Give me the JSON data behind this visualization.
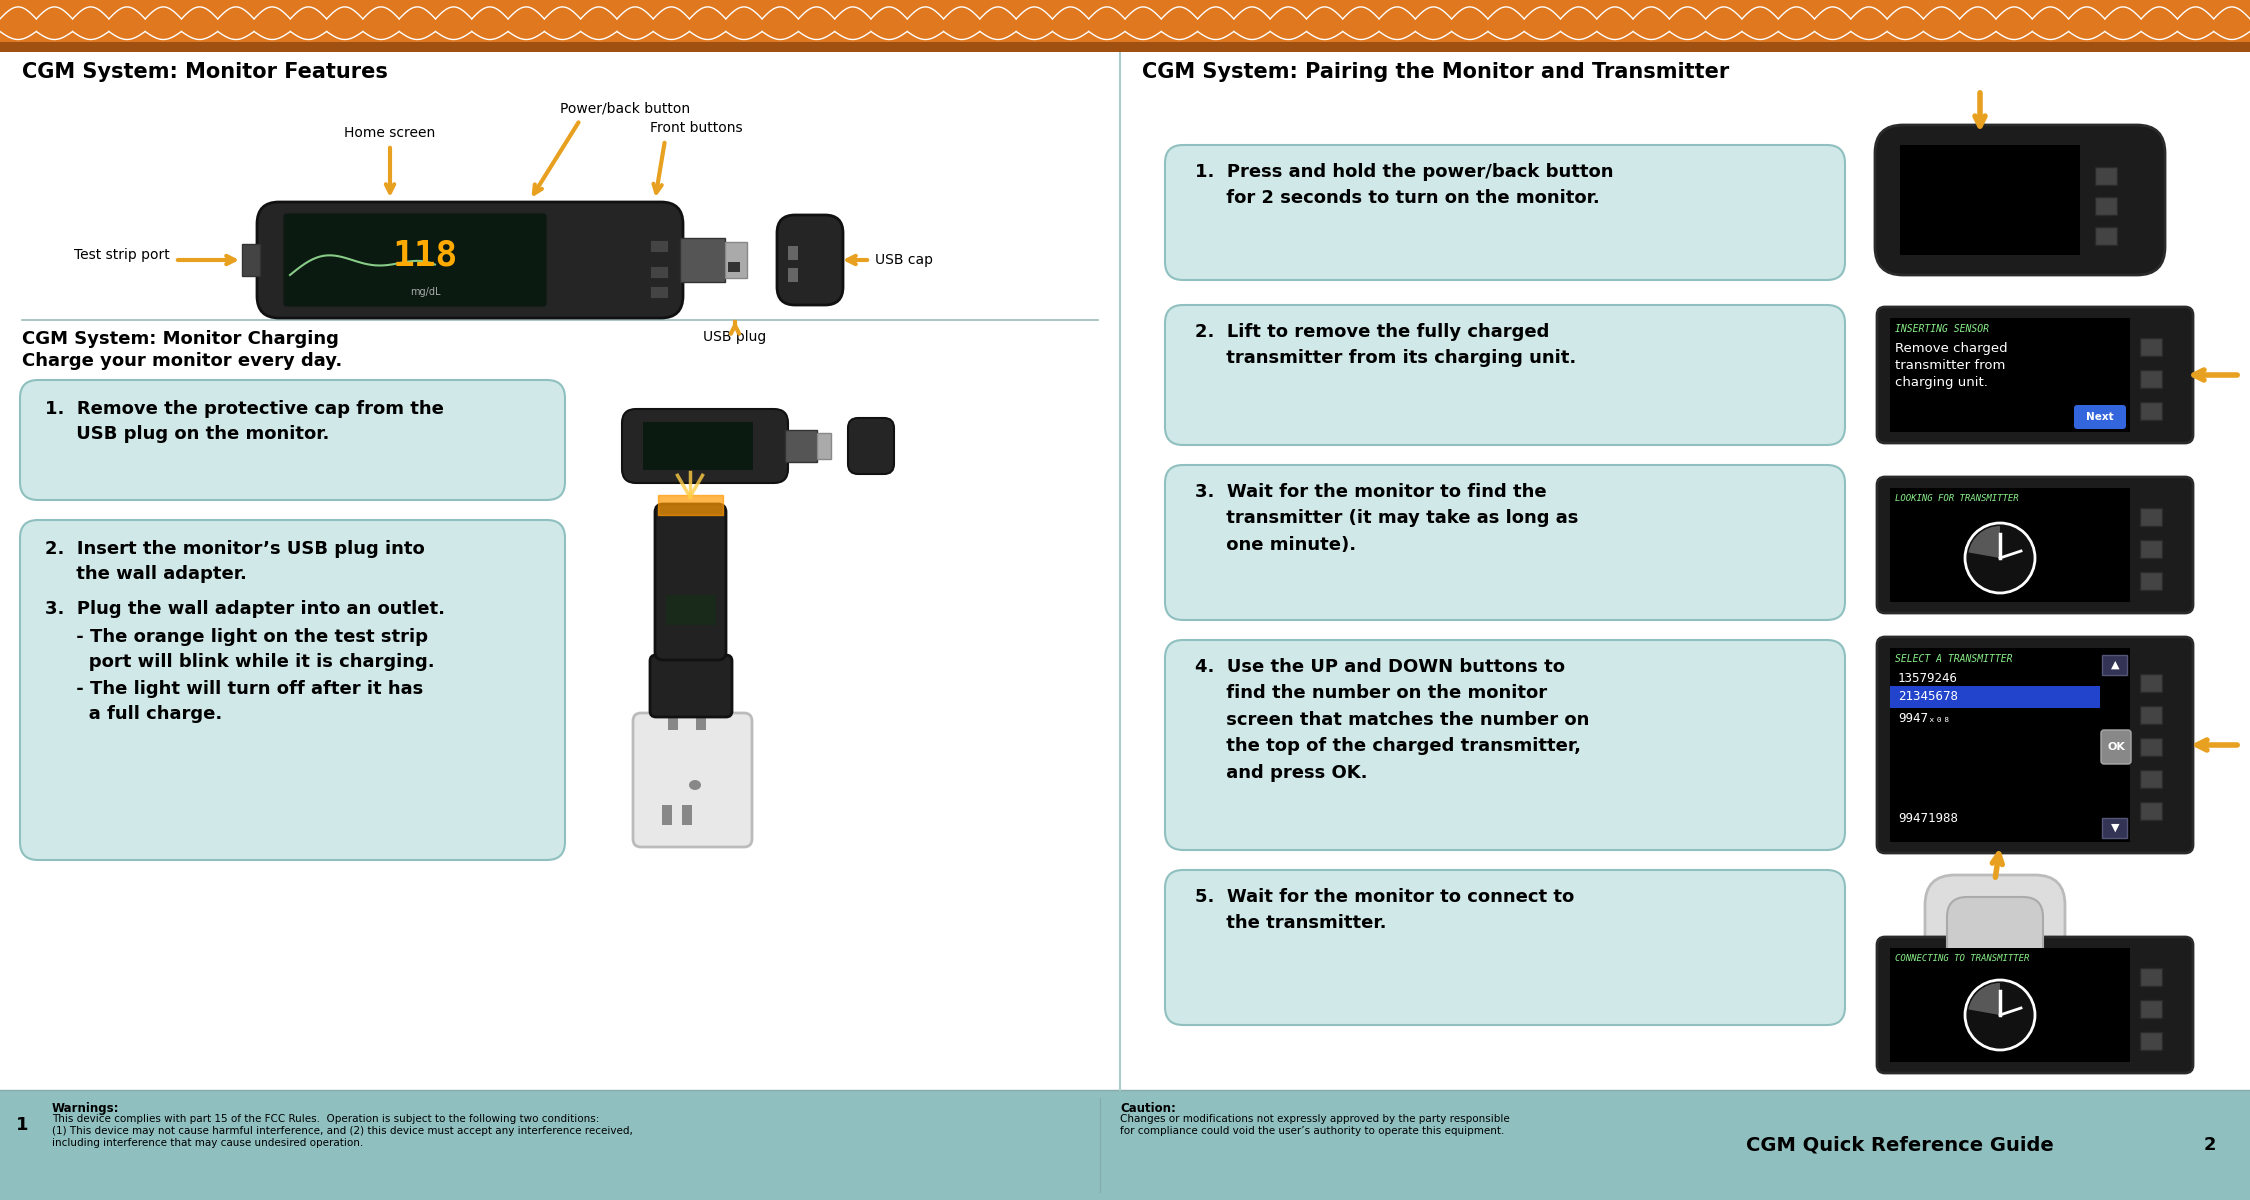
{
  "bg_color": "#8fbfbf",
  "header_orange": "#e07820",
  "header_dark_orange": "#a05010",
  "white": "#ffffff",
  "box_bg": "#d0e8e8",
  "box_border": "#8fbfbf",
  "arrow_color": "#e8a020",
  "text_dark": "#111111",
  "footer_bg": "#8fbfbf",
  "left_title": "CGM System: Monitor Features",
  "right_title": "CGM System: Pairing the Monitor and Transmitter",
  "charging_title": "CGM System: Monitor Charging",
  "charging_subtitle": "Charge your monitor every day.",
  "step1_charge": "1.  Remove the protective cap from the\n     USB plug on the monitor.",
  "step2_charge": "2.  Insert the monitor’s USB plug into\n     the wall adapter.",
  "step3_charge": "3.  Plug the wall adapter into an outlet.",
  "step3_bullet1": "     - The orange light on the test strip\n       port will blink while it is charging.",
  "step3_bullet2": "     - The light will turn off after it has\n       a full charge.",
  "pair_step1": "1.  Press and hold the power/back button\n     for 2 seconds to turn on the monitor.",
  "pair_step2": "2.  Lift to remove the fully charged\n     transmitter from its charging unit.",
  "pair_step3": "3.  Wait for the monitor to find the\n     transmitter (it may take as long as\n     one minute).",
  "pair_step4": "4.  Use the UP and DOWN buttons to\n     find the number on the monitor\n     screen that matches the number on\n     the top of the charged transmitter,\n     and press OK.",
  "pair_step5": "5.  Wait for the monitor to connect to\n     the transmitter.",
  "footer_left_num": "1",
  "footer_warnings_title": "Warnings:",
  "footer_warnings_line1": "This device complies with part 15 of the FCC Rules.  Operation is subject to the following two conditions:",
  "footer_warnings_line2": "(1) This device may not cause harmful interference, and (2) this device must accept any interference received,",
  "footer_warnings_line3": "including interference that may cause undesired operation.",
  "footer_caution_title": "Caution:",
  "footer_caution_line1": "Changes or modifications not expressly approved by the party responsible",
  "footer_caution_line2": "for compliance could void the user’s authority to operate this equipment.",
  "footer_guide_text": "CGM Quick Reference Guide",
  "footer_right_num": "2",
  "page_width": 22.5,
  "page_height": 12.0
}
